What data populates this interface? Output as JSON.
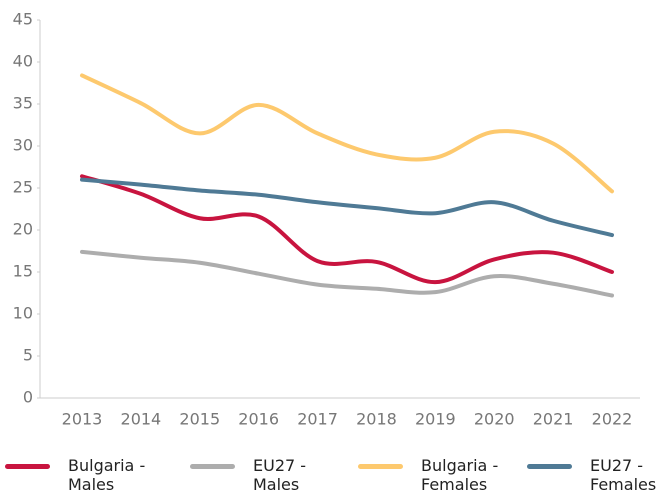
{
  "chart_data": {
    "type": "line",
    "categories": [
      "2013",
      "2014",
      "2015",
      "2016",
      "2017",
      "2018",
      "2019",
      "2020",
      "2021",
      "2022"
    ],
    "series": [
      {
        "name": "Bulgaria - Males",
        "color": "#c8143f",
        "values": [
          26.4,
          24.3,
          21.4,
          21.6,
          16.3,
          16.2,
          13.8,
          16.5,
          17.3,
          15.0
        ]
      },
      {
        "name": "EU27 - Males",
        "color": "#adadad",
        "values": [
          17.4,
          16.7,
          16.1,
          14.8,
          13.5,
          13.0,
          12.6,
          14.5,
          13.6,
          12.2
        ]
      },
      {
        "name": "Bulgaria - Females",
        "color": "#fdc96e",
        "values": [
          38.4,
          35.1,
          31.5,
          34.9,
          31.5,
          29.0,
          28.6,
          31.7,
          30.3,
          24.6
        ]
      },
      {
        "name": "EU27 - Females",
        "color": "#4f7a95",
        "values": [
          26.0,
          25.4,
          24.7,
          24.2,
          23.3,
          22.6,
          22.0,
          23.3,
          21.1,
          19.4
        ]
      }
    ],
    "ylim": [
      0,
      45
    ],
    "yticks": [
      0,
      5,
      10,
      15,
      20,
      25,
      30,
      35,
      40,
      45
    ],
    "smooth": true,
    "legend": "bottom"
  }
}
